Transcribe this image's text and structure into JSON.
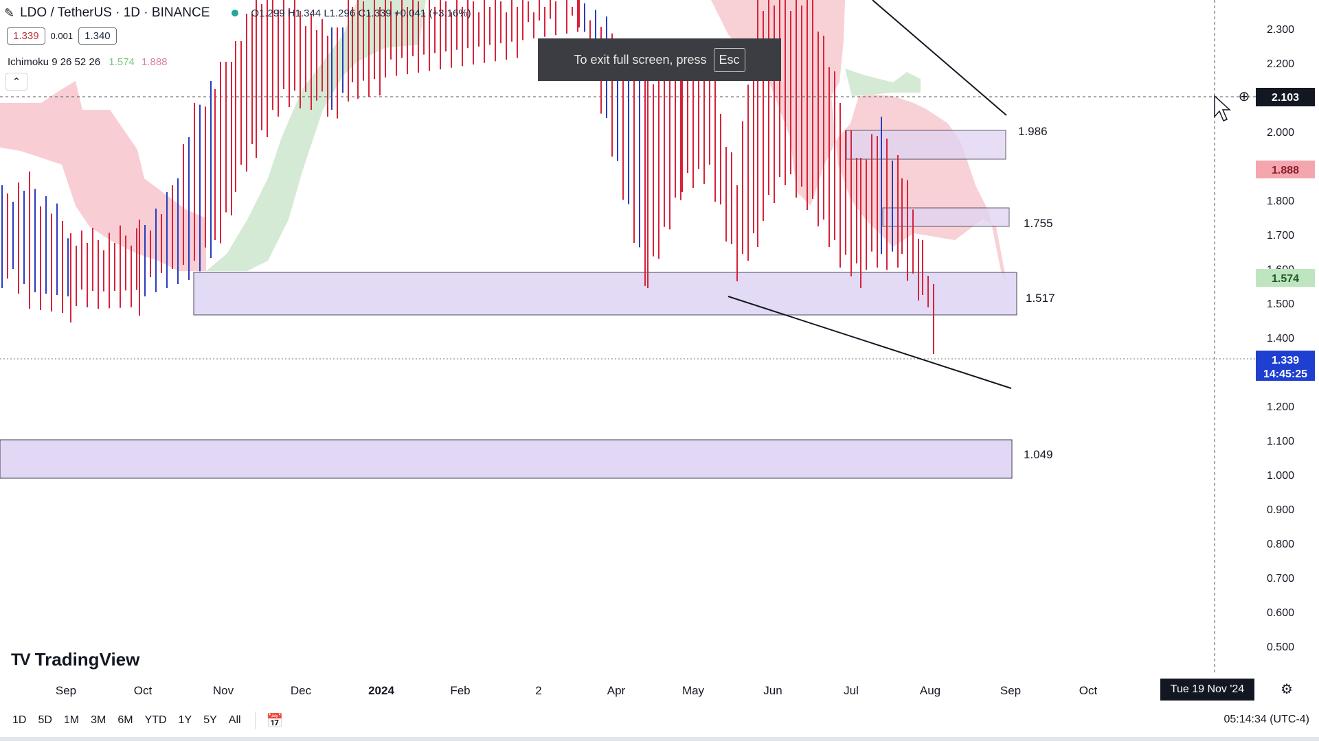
{
  "header": {
    "symbol": "LDO / TetherUS · 1D · BINANCE",
    "open": "O1.299",
    "high": "H1.344",
    "low": "L1.296",
    "close": "C1.339",
    "change": "+0.041 (+3.16%)",
    "bid": "1.339",
    "spread": "0.001",
    "ask": "1.340"
  },
  "indicator": {
    "label": "Ichimoku 9 26 52 26",
    "value1": "1.574",
    "value2": "1.888"
  },
  "toast": {
    "text": "To exit full screen, press",
    "key": "Esc"
  },
  "logo": {
    "text": "TradingView"
  },
  "price_axis": {
    "ticks": [
      "2.300",
      "2.200",
      "2.000",
      "1.800",
      "1.700",
      "1.600",
      "1.500",
      "1.400",
      "1.200",
      "1.100",
      "1.000",
      "0.900",
      "0.800",
      "0.700",
      "0.600",
      "0.500"
    ],
    "crosshair_label": "2.103",
    "ichimoku_red_label": "1.888",
    "ichimoku_green_label": "1.574",
    "last_price_label": "1.339",
    "countdown_label": "14:45:25"
  },
  "time_axis": {
    "ticks": [
      "Sep",
      "Oct",
      "Nov",
      "Dec",
      "2024",
      "Feb",
      "2",
      "Apr",
      "May",
      "Jun",
      "Jul",
      "Aug",
      "Sep",
      "Oct"
    ],
    "crosshair_date": "Tue 19 Nov '24"
  },
  "zones": [
    {
      "label": "1.986"
    },
    {
      "label": "1.755"
    },
    {
      "label": "1.517"
    },
    {
      "label": "1.049"
    }
  ],
  "bottom_bar": {
    "timeframes": [
      "1D",
      "5D",
      "1M",
      "3M",
      "6M",
      "YTD",
      "1Y",
      "5Y",
      "All"
    ],
    "clock": "05:14:34 (UTC-4)"
  },
  "colors": {
    "up": "#26a69a",
    "up_candle": "#2a3cbd",
    "down_candle": "#d6233a",
    "zone_fill": "#dfd4f4",
    "cloud_red": "#f7c9cf",
    "cloud_green": "#cfe8cf",
    "last_price": "#1e3fd0",
    "red_label": "#f4a6ae",
    "green_label": "#bfe5c0"
  }
}
